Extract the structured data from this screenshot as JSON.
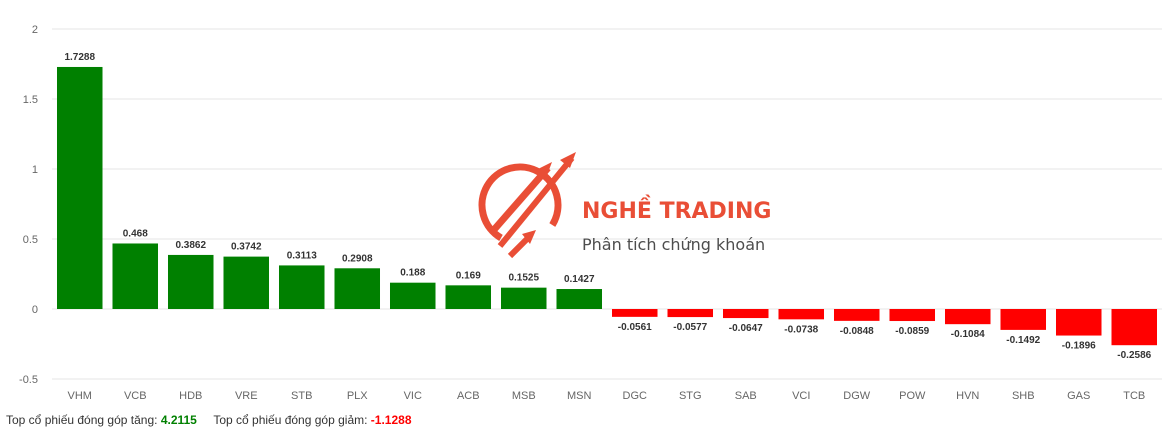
{
  "chart_data": {
    "type": "bar",
    "categories": [
      "VHM",
      "VCB",
      "HDB",
      "VRE",
      "STB",
      "PLX",
      "VIC",
      "ACB",
      "MSB",
      "MSN",
      "DGC",
      "STG",
      "SAB",
      "VCI",
      "DGW",
      "POW",
      "HVN",
      "SHB",
      "GAS",
      "TCB"
    ],
    "values": [
      1.7288,
      0.468,
      0.3862,
      0.3742,
      0.3113,
      0.2908,
      0.188,
      0.169,
      0.1525,
      0.1427,
      -0.0561,
      -0.0577,
      -0.0647,
      -0.0738,
      -0.0848,
      -0.0859,
      -0.1084,
      -0.1492,
      -0.1896,
      -0.2586
    ],
    "value_labels": [
      "1.7288",
      "0.468",
      "0.3862",
      "0.3742",
      "0.3113",
      "0.2908",
      "0.188",
      "0.169",
      "0.1525",
      "0.1427",
      "-0.0561",
      "-0.0577",
      "-0.0647",
      "-0.0738",
      "-0.0848",
      "-0.0859",
      "-0.1084",
      "-0.1492",
      "-0.1896",
      "-0.2586"
    ],
    "yticks": [
      "-0.5",
      "0",
      "0.5",
      "1",
      "1.5",
      "2"
    ],
    "ylim": [
      -0.5,
      2
    ],
    "grid": true,
    "colors": {
      "positive": "#008000",
      "negative": "#ff0000"
    }
  },
  "footer": {
    "up_label": "Top cổ phiếu đóng góp tăng:",
    "up_value": "4.2115",
    "down_label": "Top cổ phiếu đóng góp giảm:",
    "down_value": "-1.1288"
  },
  "watermark": {
    "brand": "NGHỀ TRADING",
    "tagline": "Phân tích chứng khoán"
  }
}
